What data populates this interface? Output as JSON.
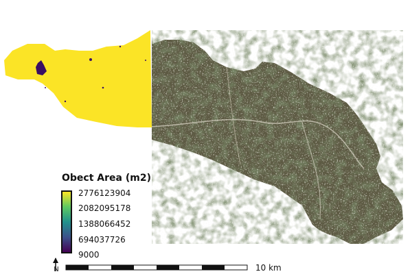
{
  "legend": {
    "title": "Obect Area (m2)",
    "ticks": [
      "2776123904",
      "2082095178",
      "1388066452",
      "694037726",
      "9000"
    ],
    "colormap": [
      "#fde725",
      "#5ec962",
      "#21918c",
      "#3b528b",
      "#440154"
    ]
  },
  "scalebar": {
    "label": "10 km"
  },
  "north_arrow": {
    "label": "N"
  },
  "colors": {
    "classified_fill": "#fbe426",
    "small_object": "#3a0e63",
    "satellite_base": "#5d5a43",
    "outline": "#3a3a3a"
  }
}
